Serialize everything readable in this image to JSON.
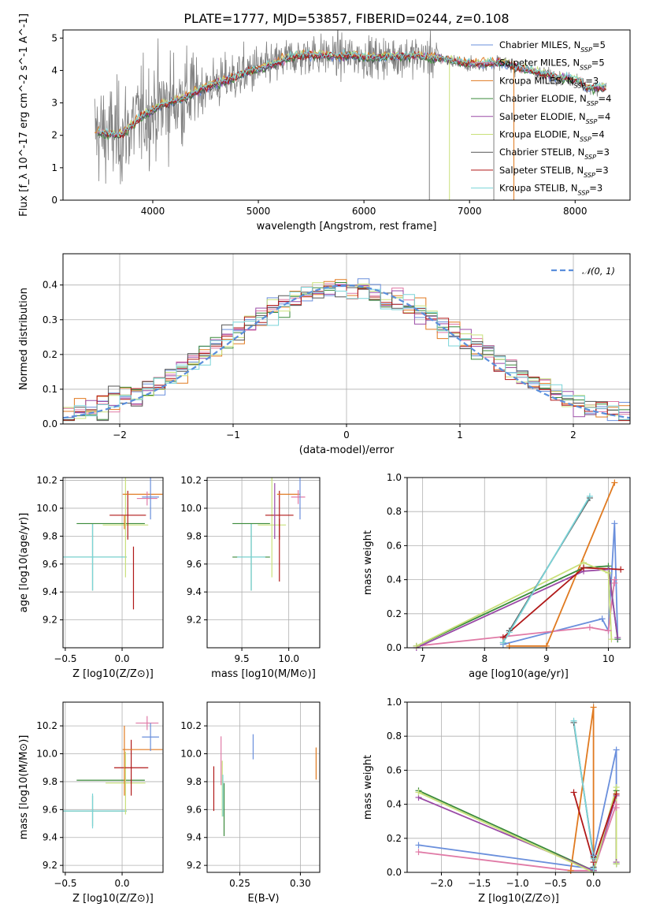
{
  "figure": {
    "title": "PLATE=1777, MJD=53857, FIBERID=0244, z=0.108"
  },
  "model_labels": [
    "Chabrier MILES, N_SSP=5",
    "Salpeter MILES, N_SSP=5",
    "Kroupa MILES, N_SSP=3",
    "Chabrier ELODIE, N_SSP=4",
    "Salpeter ELODIE, N_SSP=4",
    "Kroupa ELODIE, N_SSP=4",
    "Chabrier STELIB, N_SSP=3",
    "Salpeter STELIB, N_SSP=3",
    "Kroupa STELIB, N_SSP=3"
  ],
  "model_colors": [
    "#6a8fdc",
    "#e07aa6",
    "#e07a20",
    "#3a8a3a",
    "#9a4aa6",
    "#c9e07a",
    "#555555",
    "#b01818",
    "#7ad4d8"
  ],
  "chart_data": [
    {
      "id": "spectrum",
      "type": "line",
      "title": "PLATE=1777, MJD=53857, FIBERID=0244, z=0.108",
      "xlabel": "wavelength [Angstrom, rest frame]",
      "ylabel": "Flux [f_λ 10^-17 erg cm^-2 s^-1 A^-1]",
      "xlim": [
        3150,
        8520
      ],
      "ylim": [
        0,
        5.25
      ],
      "xticks": [
        4000,
        5000,
        6000,
        7000,
        8000
      ],
      "yticks": [
        0,
        1,
        2,
        3,
        4,
        5
      ],
      "legend": "upper right",
      "data_color": "#808080",
      "continuum": [
        [
          3450,
          2.1
        ],
        [
          3700,
          2.0
        ],
        [
          3900,
          2.6
        ],
        [
          4100,
          2.95
        ],
        [
          4300,
          3.15
        ],
        [
          4500,
          3.5
        ],
        [
          4700,
          3.7
        ],
        [
          4900,
          3.95
        ],
        [
          5100,
          4.15
        ],
        [
          5300,
          4.4
        ],
        [
          5500,
          4.5
        ],
        [
          5700,
          4.45
        ],
        [
          5900,
          4.45
        ],
        [
          6100,
          4.4
        ],
        [
          6300,
          4.45
        ],
        [
          6500,
          4.45
        ],
        [
          6700,
          4.4
        ],
        [
          6900,
          4.25
        ],
        [
          7100,
          4.2
        ],
        [
          7300,
          4.25
        ],
        [
          7500,
          4.05
        ],
        [
          7700,
          3.9
        ],
        [
          7900,
          3.75
        ],
        [
          8050,
          3.7
        ],
        [
          8100,
          3.45
        ],
        [
          8300,
          3.5
        ]
      ]
    },
    {
      "id": "residuals",
      "type": "histogram",
      "xlabel": "(data-model)/error",
      "ylabel": "Normed distribution",
      "xlim": [
        -2.5,
        2.5
      ],
      "ylim": [
        0,
        0.49
      ],
      "xticks": [
        -2,
        -1,
        0,
        1,
        2
      ],
      "yticks": [
        0.0,
        0.1,
        0.2,
        0.3,
        0.4
      ],
      "grid": true,
      "legend": "upper right",
      "gaussian_label": "𝒩(0, 1)",
      "gaussian_color": "#5b8fdc",
      "bin_width": 0.1
    },
    {
      "id": "age_vs_Z",
      "type": "scatter",
      "xlabel": "Z [log10(Z/Z⊙)]",
      "ylabel": "age [log10(age/yr)]",
      "xlim": [
        -0.52,
        0.36
      ],
      "ylim": [
        9.0,
        10.22
      ],
      "xticks": [
        -0.5,
        0.0,
        0.5
      ],
      "yticks": [
        9.2,
        9.4,
        9.6,
        9.8,
        10.0,
        10.2
      ],
      "grid": true,
      "points": [
        {
          "x": -0.26,
          "y": 9.65,
          "xerr": 0.6,
          "yerr": 0.48,
          "color": "#3a8a3a"
        },
        {
          "x": -0.26,
          "y": 9.65,
          "xerr": 0.6,
          "yerr": 0.48,
          "color": "#7ad4d8"
        },
        {
          "x": -0.1,
          "y": 9.89,
          "xerr": 0.6,
          "yerr": 0.0,
          "color": "#3a8a3a"
        },
        {
          "x": 0.03,
          "y": 9.88,
          "xerr": 0.4,
          "yerr": 0.75,
          "color": "#c9e07a"
        },
        {
          "x": 0.05,
          "y": 9.95,
          "xerr": 0.32,
          "yerr": 0.35,
          "color": "#b01818"
        },
        {
          "x": 0.1,
          "y": 9.5,
          "xerr": 0.0,
          "yerr": 0.45,
          "color": "#b01818"
        },
        {
          "x": 0.18,
          "y": 10.1,
          "xerr": 0.35,
          "yerr": 0.0,
          "color": "#e07a20"
        },
        {
          "x": 0.22,
          "y": 10.07,
          "xerr": 0.18,
          "yerr": 0.1,
          "color": "#e07aa6"
        },
        {
          "x": 0.25,
          "y": 10.08,
          "xerr": 0.15,
          "yerr": 0.32,
          "color": "#6a8fdc"
        },
        {
          "x": 0.02,
          "y": 9.9,
          "xerr": 0.0,
          "yerr": 0.1,
          "color": "#e07a20"
        }
      ]
    },
    {
      "id": "age_vs_mass",
      "type": "scatter",
      "xlabel": "mass [log10(M/M⊙)]",
      "ylabel": "",
      "xlim": [
        9.13,
        10.33
      ],
      "ylim": [
        9.0,
        10.22
      ],
      "xticks": [
        9.5,
        10.0
      ],
      "yticks": [
        9.2,
        9.4,
        9.6,
        9.8,
        10.0,
        10.2
      ],
      "grid": true,
      "points": [
        {
          "x": 9.6,
          "y": 9.65,
          "xerr": 0.4,
          "yerr": 0.48,
          "color": "#3a8a3a"
        },
        {
          "x": 9.6,
          "y": 9.65,
          "xerr": 0.3,
          "yerr": 0.48,
          "color": "#7ad4d8"
        },
        {
          "x": 9.6,
          "y": 9.89,
          "xerr": 0.4,
          "yerr": 0.0,
          "color": "#3a8a3a"
        },
        {
          "x": 9.82,
          "y": 9.88,
          "xerr": 0.3,
          "yerr": 0.75,
          "color": "#c9e07a"
        },
        {
          "x": 9.9,
          "y": 9.95,
          "xerr": 0.3,
          "yerr": 0.35,
          "color": "#b01818"
        },
        {
          "x": 9.9,
          "y": 9.7,
          "xerr": 0.0,
          "yerr": 0.45,
          "color": "#b01818"
        },
        {
          "x": 10.0,
          "y": 10.1,
          "xerr": 0.25,
          "yerr": 0.0,
          "color": "#e07a20"
        },
        {
          "x": 10.1,
          "y": 10.08,
          "xerr": 0.15,
          "yerr": 0.1,
          "color": "#e07aa6"
        },
        {
          "x": 10.12,
          "y": 10.08,
          "xerr": 0.0,
          "yerr": 0.32,
          "color": "#6a8fdc"
        },
        {
          "x": 9.85,
          "y": 9.98,
          "xerr": 0.0,
          "yerr": 0.4,
          "color": "#9a4aa6"
        }
      ]
    },
    {
      "id": "weight_vs_age",
      "type": "line",
      "xlabel": "age [log10(age/yr)]",
      "ylabel": "mass weight",
      "xlim": [
        6.75,
        10.35
      ],
      "ylim": [
        0.0,
        1.0
      ],
      "xticks": [
        7,
        8,
        9,
        10
      ],
      "yticks": [
        0.0,
        0.2,
        0.4,
        0.6,
        0.8,
        1.0
      ],
      "grid": true,
      "series": [
        {
          "color": "#6a8fdc",
          "x": [
            8.3,
            9.9,
            10.0,
            10.1,
            10.15
          ],
          "y": [
            0.02,
            0.17,
            0.1,
            0.73,
            0.05
          ]
        },
        {
          "color": "#e07aa6",
          "x": [
            6.9,
            9.7,
            10.0,
            10.1,
            10.1
          ],
          "y": [
            0.01,
            0.12,
            0.1,
            0.4,
            0.38
          ]
        },
        {
          "color": "#e07a20",
          "x": [
            8.4,
            9.0,
            10.1
          ],
          "y": [
            0.01,
            0.01,
            0.97
          ]
        },
        {
          "color": "#3a8a3a",
          "x": [
            6.9,
            9.6,
            10.0,
            10.15
          ],
          "y": [
            0.01,
            0.47,
            0.48,
            0.05
          ]
        },
        {
          "color": "#9a4aa6",
          "x": [
            6.9,
            9.6,
            10.0,
            10.15
          ],
          "y": [
            0.0,
            0.45,
            0.46,
            0.06
          ]
        },
        {
          "color": "#c9e07a",
          "x": [
            6.9,
            9.6,
            10.0,
            10.05
          ],
          "y": [
            0.01,
            0.5,
            0.44,
            0.05
          ]
        },
        {
          "color": "#555555",
          "x": [
            8.3,
            8.4,
            9.7
          ],
          "y": [
            0.03,
            0.1,
            0.88
          ]
        },
        {
          "color": "#b01818",
          "x": [
            8.3,
            9.6,
            10.2
          ],
          "y": [
            0.06,
            0.47,
            0.46
          ]
        },
        {
          "color": "#7ad4d8",
          "x": [
            8.3,
            8.4,
            9.7
          ],
          "y": [
            0.03,
            0.09,
            0.89
          ]
        }
      ]
    },
    {
      "id": "mass_vs_Z",
      "type": "scatter",
      "xlabel": "Z [log10(Z/Z⊙)]",
      "ylabel": "mass [log10(M/M⊙)]",
      "xlim": [
        -0.52,
        0.36
      ],
      "ylim": [
        9.15,
        10.37
      ],
      "xticks": [
        -0.5,
        0.0,
        0.5
      ],
      "yticks": [
        9.2,
        9.4,
        9.6,
        9.8,
        10.0,
        10.2
      ],
      "grid": true,
      "points": [
        {
          "x": -0.26,
          "y": 9.59,
          "xerr": 0.6,
          "yerr": 0.22,
          "color": "#3a8a3a"
        },
        {
          "x": -0.26,
          "y": 9.59,
          "xerr": 0.6,
          "yerr": 0.25,
          "color": "#7ad4d8"
        },
        {
          "x": -0.1,
          "y": 9.81,
          "xerr": 0.6,
          "yerr": 0.0,
          "color": "#3a8a3a"
        },
        {
          "x": 0.03,
          "y": 9.79,
          "xerr": 0.35,
          "yerr": 0.45,
          "color": "#c9e07a"
        },
        {
          "x": 0.08,
          "y": 9.9,
          "xerr": 0.3,
          "yerr": 0.4,
          "color": "#b01818"
        },
        {
          "x": 0.18,
          "y": 10.03,
          "xerr": 0.35,
          "yerr": 0.0,
          "color": "#e07a20"
        },
        {
          "x": 0.22,
          "y": 10.22,
          "xerr": 0.2,
          "yerr": 0.1,
          "color": "#e07aa6"
        },
        {
          "x": 0.25,
          "y": 10.12,
          "xerr": 0.15,
          "yerr": 0.2,
          "color": "#6a8fdc"
        },
        {
          "x": 0.02,
          "y": 9.95,
          "xerr": 0.0,
          "yerr": 0.5,
          "color": "#e07a20"
        }
      ]
    },
    {
      "id": "mass_vs_EBV",
      "type": "scatter",
      "xlabel": "E(B-V)",
      "ylabel": "",
      "xlim": [
        0.223,
        0.316
      ],
      "ylim": [
        9.15,
        10.37
      ],
      "xticks": [
        0.25,
        0.3
      ],
      "yticks": [
        9.2,
        9.4,
        9.6,
        9.8,
        10.0,
        10.2
      ],
      "grid": true,
      "points": [
        {
          "x": 0.2285,
          "y": 9.75,
          "yerr": 0.32,
          "color": "#b01818"
        },
        {
          "x": 0.2345,
          "y": 9.95,
          "yerr": 0.35,
          "color": "#e07aa6"
        },
        {
          "x": 0.2355,
          "y": 9.75,
          "yerr": 0.4,
          "color": "#c9e07a"
        },
        {
          "x": 0.236,
          "y": 9.7,
          "yerr": 0.3,
          "color": "#7ad4d8"
        },
        {
          "x": 0.261,
          "y": 10.05,
          "yerr": 0.18,
          "color": "#6a8fdc"
        },
        {
          "x": 0.313,
          "y": 9.93,
          "yerr": 0.23,
          "color": "#e07a20"
        },
        {
          "x": 0.237,
          "y": 9.6,
          "yerr": 0.38,
          "color": "#3a8a3a"
        }
      ]
    },
    {
      "id": "weight_vs_Z",
      "type": "line",
      "xlabel": "Z [log10(Z/Z⊙)]",
      "ylabel": "mass weight",
      "xlim": [
        -2.45,
        0.48
      ],
      "ylim": [
        0.0,
        1.0
      ],
      "xticks": [
        -2.0,
        -1.5,
        -1.0,
        -0.5,
        0.0
      ],
      "yticks": [
        0.0,
        0.2,
        0.4,
        0.6,
        0.8,
        1.0
      ],
      "grid": true,
      "series": [
        {
          "color": "#6a8fdc",
          "x": [
            -2.3,
            0.0,
            0.0,
            0.3,
            0.3
          ],
          "y": [
            0.16,
            0.02,
            0.1,
            0.72,
            0.05
          ]
        },
        {
          "color": "#e07aa6",
          "x": [
            -2.3,
            -0.3,
            0.0,
            0.3,
            0.3
          ],
          "y": [
            0.12,
            0.01,
            0.01,
            0.4,
            0.38
          ]
        },
        {
          "color": "#e07a20",
          "x": [
            -0.3,
            0.0,
            0.0
          ],
          "y": [
            0.01,
            0.97,
            0.01
          ]
        },
        {
          "color": "#3a8a3a",
          "x": [
            -2.3,
            0.0,
            0.3,
            0.3
          ],
          "y": [
            0.48,
            0.01,
            0.48,
            0.05
          ]
        },
        {
          "color": "#9a4aa6",
          "x": [
            -2.3,
            0.0,
            0.3,
            0.3
          ],
          "y": [
            0.44,
            0.01,
            0.45,
            0.06
          ]
        },
        {
          "color": "#c9e07a",
          "x": [
            -2.3,
            0.0,
            0.3,
            0.3
          ],
          "y": [
            0.47,
            0.0,
            0.5,
            0.05
          ]
        },
        {
          "color": "#555555",
          "x": [
            -0.26,
            0.0,
            0.0
          ],
          "y": [
            0.88,
            0.09,
            0.03
          ]
        },
        {
          "color": "#b01818",
          "x": [
            -0.26,
            0.0,
            0.3
          ],
          "y": [
            0.47,
            0.06,
            0.46
          ]
        },
        {
          "color": "#7ad4d8",
          "x": [
            -0.26,
            0.0,
            0.0
          ],
          "y": [
            0.89,
            0.08,
            0.02
          ]
        }
      ]
    }
  ]
}
